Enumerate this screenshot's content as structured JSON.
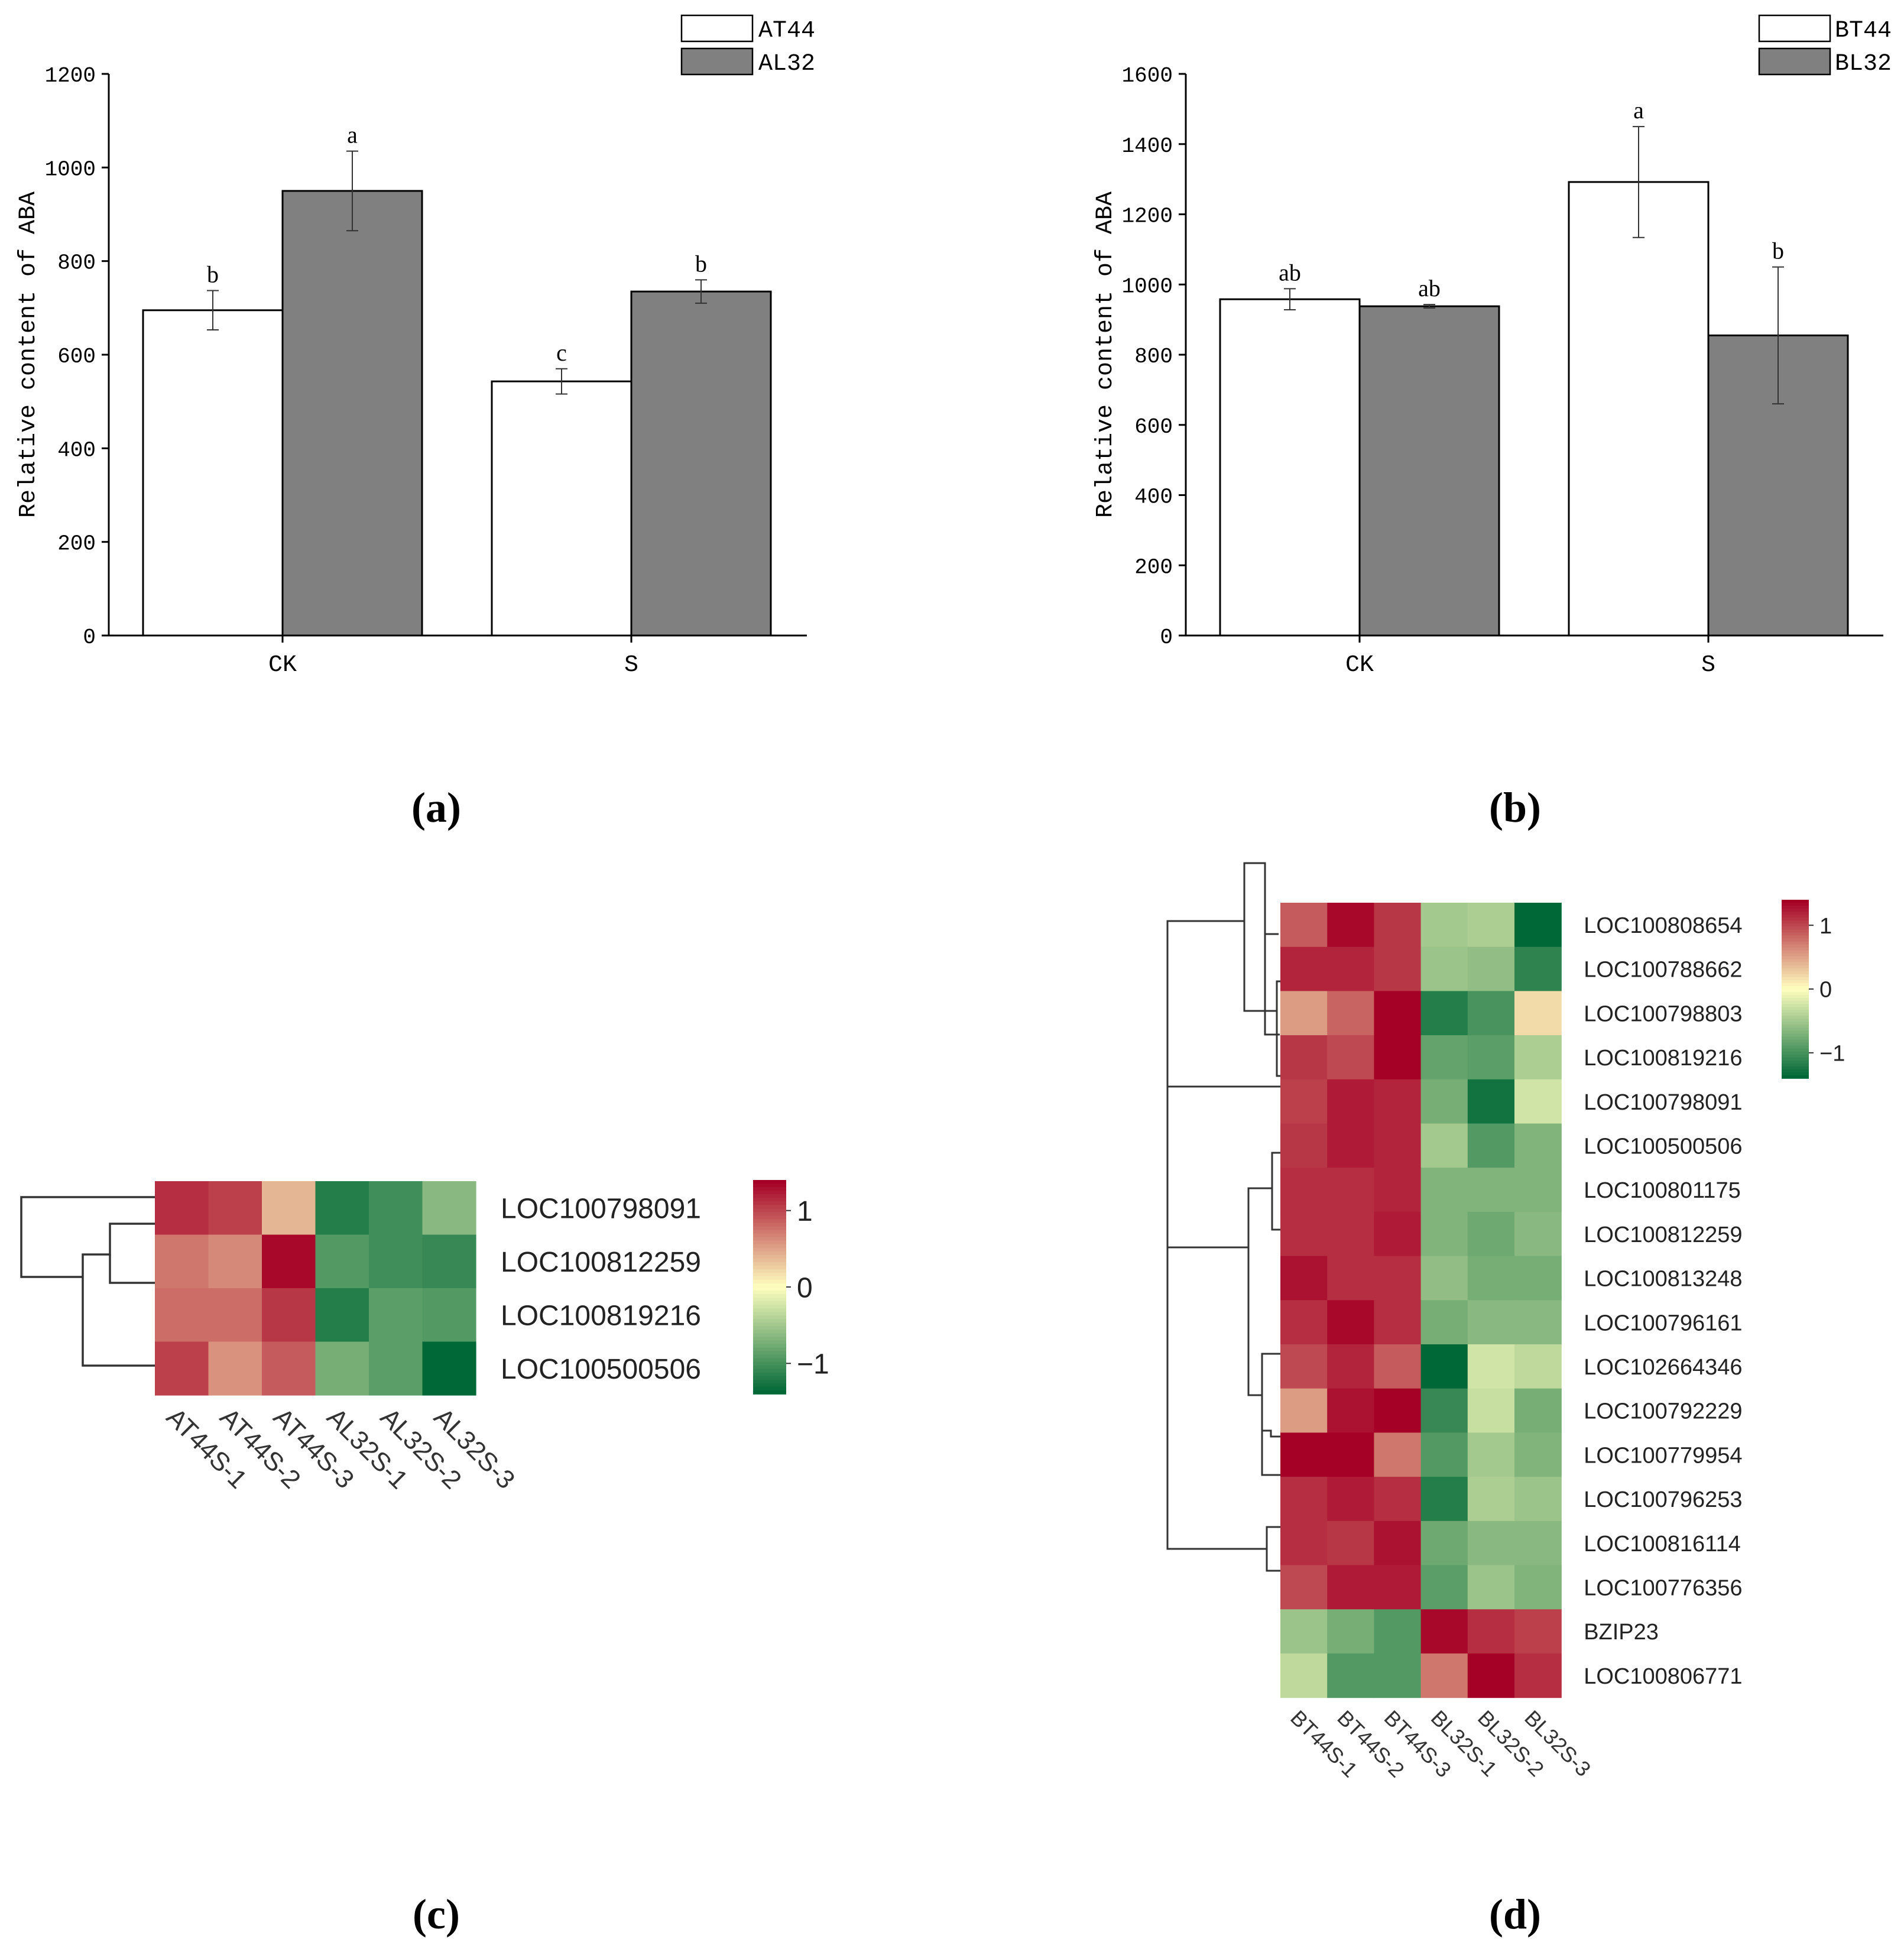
{
  "panel_labels": [
    "(a)",
    "(b)",
    "(c)",
    "(d)"
  ],
  "colors": {
    "bar_white": "#ffffff",
    "bar_gray": "#808080",
    "axis": "#000000",
    "heat_low": "#006837",
    "heat_mid": "#ffffbf",
    "heat_high": "#a50026"
  },
  "chart_data": [
    {
      "id": "a",
      "type": "bar",
      "title": "",
      "xlabel": "",
      "ylabel": "Relative content of ABA",
      "ylim": [
        0,
        1200
      ],
      "yticks": [
        "0",
        "200",
        "400",
        "600",
        "800",
        "1000",
        "1200"
      ],
      "categories": [
        "CK",
        "S"
      ],
      "series": [
        {
          "name": "AT44",
          "color": "#ffffff",
          "values": [
            695,
            543
          ],
          "errors": [
            42,
            27
          ],
          "letters": [
            "b",
            "c"
          ]
        },
        {
          "name": "AL32",
          "color": "#808080",
          "values": [
            950,
            735
          ],
          "errors": [
            85,
            25
          ],
          "letters": [
            "a",
            "b"
          ]
        }
      ],
      "legend": "top-right"
    },
    {
      "id": "b",
      "type": "bar",
      "title": "",
      "xlabel": "",
      "ylabel": "Relative content of ABA",
      "ylim": [
        0,
        1600
      ],
      "yticks": [
        "0",
        "200",
        "400",
        "600",
        "800",
        "1000",
        "1200",
        "1400",
        "1600"
      ],
      "categories": [
        "CK",
        "S"
      ],
      "series": [
        {
          "name": "BT44",
          "color": "#ffffff",
          "values": [
            958,
            1292
          ],
          "errors": [
            30,
            158
          ],
          "letters": [
            "ab",
            "a"
          ]
        },
        {
          "name": "BL32",
          "color": "#808080",
          "values": [
            938,
            855
          ],
          "errors": [
            5,
            195
          ],
          "letters": [
            "ab",
            "b"
          ]
        }
      ],
      "legend": "top-right"
    },
    {
      "id": "c",
      "type": "heatmap",
      "title": "",
      "rows": [
        "LOC100798091",
        "LOC100812259",
        "LOC100819216",
        "LOC100500506"
      ],
      "columns": [
        "AT44S-1",
        "AT44S-2",
        "AT44S-3",
        "AL32S-1",
        "AL32S-2",
        "AL32S-3"
      ],
      "values": [
        [
          1.15,
          1.05,
          0.4,
          -1.2,
          -1.05,
          -0.65
        ],
        [
          0.75,
          0.65,
          1.35,
          -0.95,
          -1.05,
          -1.1
        ],
        [
          0.8,
          0.8,
          1.1,
          -1.2,
          -0.9,
          -0.95
        ],
        [
          1.05,
          0.6,
          0.9,
          -0.75,
          -0.9,
          -1.45
        ]
      ],
      "color_range": [
        -1.4,
        1.4
      ],
      "colorbar_ticks": [
        "1",
        "0",
        "−1"
      ],
      "colorbar_tick_values": [
        1,
        0,
        -1
      ]
    },
    {
      "id": "d",
      "type": "heatmap",
      "title": "",
      "rows": [
        "LOC100808654",
        "LOC100788662",
        "LOC100798803",
        "LOC100819216",
        "LOC100798091",
        "LOC100500506",
        "LOC100801175",
        "LOC100812259",
        "LOC100813248",
        "LOC100796161",
        "LOC102664346",
        "LOC100792229",
        "LOC100779954",
        "LOC100796253",
        "LOC100816114",
        "LOC100776356",
        "BZIP23",
        "LOC100806771"
      ],
      "columns": [
        "BT44S-1",
        "BT44S-2",
        "BT44S-3",
        "BL32S-1",
        "BL32S-2",
        "BL32S-3"
      ],
      "values": [
        [
          0.9,
          1.35,
          1.1,
          -0.5,
          -0.45,
          -1.4
        ],
        [
          1.2,
          1.2,
          1.1,
          -0.55,
          -0.6,
          -1.15
        ],
        [
          0.55,
          0.85,
          1.4,
          -1.2,
          -1.0,
          0.2
        ],
        [
          1.1,
          1.0,
          1.4,
          -0.85,
          -0.9,
          -0.45
        ],
        [
          1.05,
          1.25,
          1.2,
          -0.75,
          -1.3,
          -0.25
        ],
        [
          1.1,
          1.25,
          1.2,
          -0.5,
          -0.95,
          -0.7
        ],
        [
          1.15,
          1.15,
          1.2,
          -0.7,
          -0.7,
          -0.7
        ],
        [
          1.15,
          1.15,
          1.25,
          -0.7,
          -0.8,
          -0.65
        ],
        [
          1.3,
          1.15,
          1.15,
          -0.6,
          -0.75,
          -0.75
        ],
        [
          1.15,
          1.35,
          1.15,
          -0.75,
          -0.65,
          -0.65
        ],
        [
          1.0,
          1.2,
          0.9,
          -1.65,
          -0.25,
          -0.35
        ],
        [
          0.55,
          1.3,
          1.45,
          -1.1,
          -0.3,
          -0.75
        ],
        [
          1.4,
          1.4,
          0.75,
          -0.95,
          -0.5,
          -0.7
        ],
        [
          1.15,
          1.25,
          1.15,
          -1.2,
          -0.45,
          -0.55
        ],
        [
          1.15,
          1.1,
          1.3,
          -0.8,
          -0.65,
          -0.65
        ],
        [
          1.0,
          1.25,
          1.25,
          -0.9,
          -0.55,
          -0.7
        ],
        [
          -0.55,
          -0.75,
          -0.95,
          1.35,
          1.15,
          1.05
        ],
        [
          -0.35,
          -0.95,
          -0.95,
          0.75,
          1.55,
          1.15
        ]
      ],
      "color_range": [
        -1.4,
        1.4
      ],
      "colorbar_ticks": [
        "1",
        "0",
        "−1"
      ],
      "colorbar_tick_values": [
        1,
        0,
        -1
      ]
    }
  ]
}
